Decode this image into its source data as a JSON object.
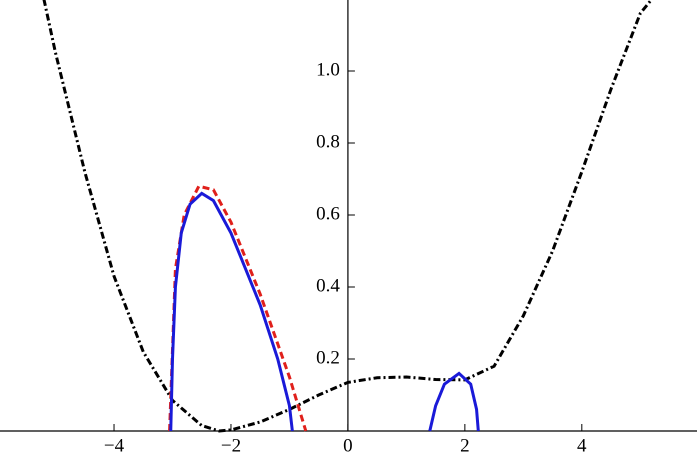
{
  "chart_data": {
    "type": "line",
    "xlim": [
      -5.95,
      5.97
    ],
    "ylim": [
      0,
      1.2
    ],
    "xticks": [
      {
        "value": -4,
        "label": "−4"
      },
      {
        "value": -2,
        "label": "−2"
      },
      0,
      2,
      4
    ],
    "yticks": [
      0.2,
      0.4,
      0.6,
      0.8,
      {
        "value": 1.0,
        "label": "1.0"
      }
    ],
    "series": [
      {
        "color": "#000000",
        "line_style": "dashdot",
        "x": [
          -5.2,
          -5,
          -4.5,
          -4,
          -3.5,
          -3,
          -2.5,
          -2.2,
          -2,
          -1.5,
          -1,
          -0.5,
          0,
          0.5,
          1,
          1.5,
          2,
          2.5,
          3,
          3.5,
          4,
          4.5,
          5,
          5.2
        ],
        "values": [
          1.2,
          1.05,
          0.72,
          0.43,
          0.22,
          0.085,
          0.015,
          0,
          0.003,
          0.025,
          0.06,
          0.1,
          0.135,
          0.148,
          0.15,
          0.143,
          0.142,
          0.18,
          0.32,
          0.5,
          0.72,
          0.95,
          1.16,
          1.2
        ]
      },
      {
        "color": "#e0201b",
        "line_style": "dashed",
        "x": [
          -3.05,
          -2.95,
          -2.8,
          -2.55,
          -2.3,
          -2,
          -1.5,
          -1,
          -0.72
        ],
        "values": [
          0,
          0.45,
          0.6,
          0.68,
          0.67,
          0.58,
          0.38,
          0.15,
          0
        ]
      },
      {
        "color": "#1a1ad8",
        "line_style": "solid",
        "x": [
          -3.03,
          -3.0,
          -2.95,
          -2.85,
          -2.7,
          -2.5,
          -2.3,
          -2,
          -1.5,
          -1.2,
          -1.0,
          -0.95
        ],
        "values": [
          0,
          0.2,
          0.4,
          0.55,
          0.63,
          0.66,
          0.64,
          0.55,
          0.35,
          0.2,
          0.07,
          0
        ]
      },
      {
        "color": "#1a1ad8",
        "line_style": "solid",
        "x": [
          1.4,
          1.5,
          1.65,
          1.9,
          2.1,
          2.2,
          2.23
        ],
        "values": [
          0,
          0.07,
          0.13,
          0.16,
          0.13,
          0.06,
          0
        ]
      }
    ]
  }
}
